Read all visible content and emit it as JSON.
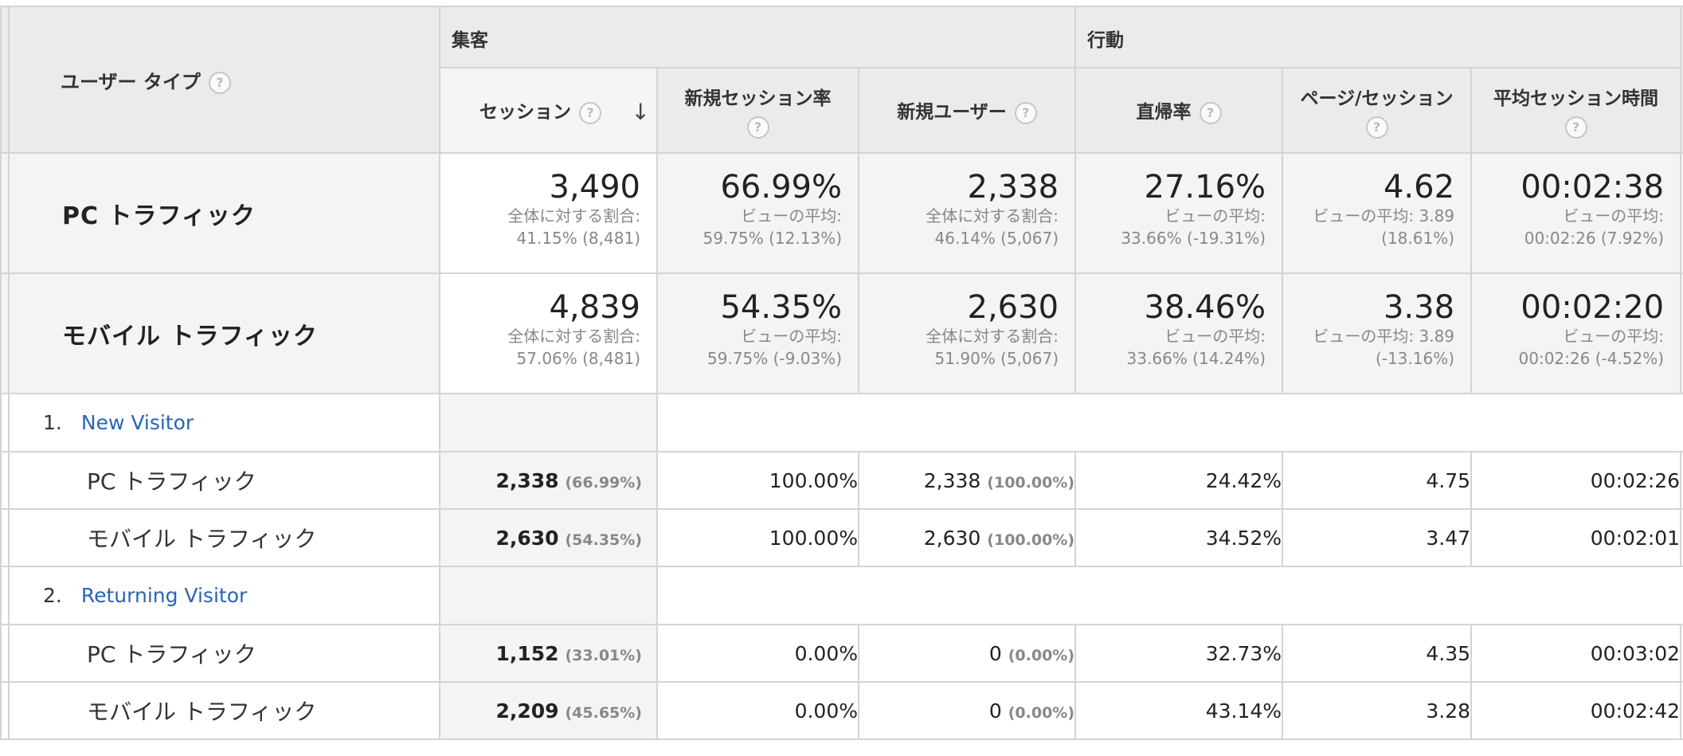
{
  "header": {
    "dimension_label": "ユーザー タイプ",
    "groups": [
      {
        "label": "集客"
      },
      {
        "label": "行動"
      }
    ],
    "metrics": [
      {
        "label": "セッション"
      },
      {
        "label": "新規セッション率"
      },
      {
        "label": "新規ユーザー"
      },
      {
        "label": "直帰率"
      },
      {
        "label": "ページ/セッション"
      },
      {
        "label": "平均セッション時間"
      }
    ],
    "help_glyph": "?",
    "sort_glyph": "↓"
  },
  "segments": [
    {
      "name": "PC トラフィック",
      "cells": [
        {
          "value": "3,490",
          "sub1": "全体に対する割合:",
          "sub2": "41.15% (8,481)"
        },
        {
          "value": "66.99%",
          "sub1": "ビューの平均:",
          "sub2": "59.75% (12.13%)"
        },
        {
          "value": "2,338",
          "sub1": "全体に対する割合:",
          "sub2": "46.14% (5,067)"
        },
        {
          "value": "27.16%",
          "sub1": "ビューの平均:",
          "sub2": "33.66% (-19.31%)"
        },
        {
          "value": "4.62",
          "sub1": "ビューの平均: 3.89",
          "sub2": "(18.61%)"
        },
        {
          "value": "00:02:38",
          "sub1": "ビューの平均:",
          "sub2": "00:02:26 (7.92%)"
        }
      ]
    },
    {
      "name": "モバイル トラフィック",
      "cells": [
        {
          "value": "4,839",
          "sub1": "全体に対する割合:",
          "sub2": "57.06% (8,481)"
        },
        {
          "value": "54.35%",
          "sub1": "ビューの平均:",
          "sub2": "59.75% (-9.03%)"
        },
        {
          "value": "2,630",
          "sub1": "全体に対する割合:",
          "sub2": "51.90% (5,067)"
        },
        {
          "value": "38.46%",
          "sub1": "ビューの平均:",
          "sub2": "33.66% (14.24%)"
        },
        {
          "value": "3.38",
          "sub1": "ビューの平均: 3.89",
          "sub2": "(-13.16%)"
        },
        {
          "value": "00:02:20",
          "sub1": "ビューの平均:",
          "sub2": "00:02:26 (-4.52%)"
        }
      ]
    }
  ],
  "groups": [
    {
      "index": "1.",
      "label": "New Visitor",
      "rows": [
        {
          "name": "PC トラフィック",
          "sessions": "2,338",
          "sessions_pct": "(66.99%)",
          "new_session_rate": "100.00%",
          "new_users": "2,338",
          "new_users_pct": "(100.00%)",
          "bounce": "24.42%",
          "pages": "4.75",
          "duration": "00:02:26"
        },
        {
          "name": "モバイル トラフィック",
          "sessions": "2,630",
          "sessions_pct": "(54.35%)",
          "new_session_rate": "100.00%",
          "new_users": "2,630",
          "new_users_pct": "(100.00%)",
          "bounce": "34.52%",
          "pages": "3.47",
          "duration": "00:02:01"
        }
      ]
    },
    {
      "index": "2.",
      "label": "Returning Visitor",
      "rows": [
        {
          "name": "PC トラフィック",
          "sessions": "1,152",
          "sessions_pct": "(33.01%)",
          "new_session_rate": "0.00%",
          "new_users": "0",
          "new_users_pct": "(0.00%)",
          "bounce": "32.73%",
          "pages": "4.35",
          "duration": "00:03:02"
        },
        {
          "name": "モバイル トラフィック",
          "sessions": "2,209",
          "sessions_pct": "(45.65%)",
          "new_session_rate": "0.00%",
          "new_users": "0",
          "new_users_pct": "(0.00%)",
          "bounce": "43.14%",
          "pages": "3.28",
          "duration": "00:02:42"
        }
      ]
    }
  ],
  "colors": {
    "link": "#2a64b4",
    "header_bg": "#ebebeb",
    "segment_bg": "#f4f4f4",
    "border": "#d4d4d4",
    "muted": "#888888"
  }
}
